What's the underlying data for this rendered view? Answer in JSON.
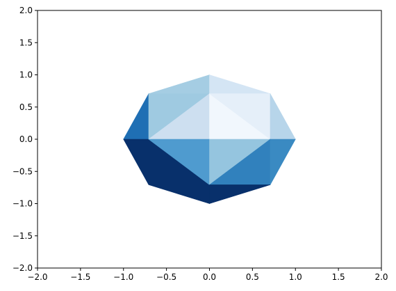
{
  "chart_data": {
    "type": "polygon-mesh",
    "title": "",
    "xlabel": "",
    "ylabel": "",
    "xlim": [
      -2.0,
      2.0
    ],
    "ylim": [
      -2.0,
      2.0
    ],
    "grid": false,
    "legend": "none",
    "xticks": [
      -2.0,
      -1.5,
      -1.0,
      -0.5,
      0.0,
      0.5,
      1.0,
      1.5,
      2.0
    ],
    "yticks": [
      -2.0,
      -1.5,
      -1.0,
      -0.5,
      0.0,
      0.5,
      1.0,
      1.5,
      2.0
    ],
    "xtick_labels": [
      "−2.0",
      "−1.5",
      "−1.0",
      "−0.5",
      "0.0",
      "0.5",
      "1.0",
      "1.5",
      "2.0"
    ],
    "ytick_labels": [
      "−2.0",
      "−1.5",
      "−1.0",
      "−0.5",
      "0.0",
      "0.5",
      "1.0",
      "1.5",
      "2.0"
    ],
    "polygons": [
      {
        "name": "top-left-upper",
        "points": [
          [
            -0.707,
            0.707
          ],
          [
            0.0,
            1.0
          ],
          [
            0.0,
            0.707
          ]
        ],
        "color": "#a5cde3"
      },
      {
        "name": "top-right-upper",
        "points": [
          [
            0.0,
            1.0
          ],
          [
            0.707,
            0.707
          ],
          [
            0.0,
            0.707
          ]
        ],
        "color": "#d4e5f4"
      },
      {
        "name": "left-upper",
        "points": [
          [
            -1.0,
            0.0
          ],
          [
            -0.707,
            0.707
          ],
          [
            -0.707,
            0.0
          ]
        ],
        "color": "#1f6fb4"
      },
      {
        "name": "upper-left-inner-a",
        "points": [
          [
            -0.707,
            0.707
          ],
          [
            0.0,
            0.707
          ],
          [
            -0.707,
            0.0
          ]
        ],
        "color": "#9fcae1"
      },
      {
        "name": "upper-left-inner-b",
        "points": [
          [
            0.0,
            0.707
          ],
          [
            0.0,
            0.0
          ],
          [
            -0.707,
            0.0
          ]
        ],
        "color": "#cddff0"
      },
      {
        "name": "upper-right-inner-a",
        "points": [
          [
            0.0,
            0.707
          ],
          [
            0.707,
            0.0
          ],
          [
            0.0,
            0.0
          ]
        ],
        "color": "#f1f7fd"
      },
      {
        "name": "upper-right-inner-b",
        "points": [
          [
            0.0,
            0.707
          ],
          [
            0.707,
            0.707
          ],
          [
            0.707,
            0.0
          ]
        ],
        "color": "#e5eff9"
      },
      {
        "name": "right-upper",
        "points": [
          [
            0.707,
            0.707
          ],
          [
            1.0,
            0.0
          ],
          [
            0.707,
            0.0
          ]
        ],
        "color": "#b7d5ea"
      },
      {
        "name": "lower-left-outer",
        "points": [
          [
            -1.0,
            0.0
          ],
          [
            -0.707,
            -0.707
          ],
          [
            0.0,
            -1.0
          ],
          [
            0.0,
            -0.707
          ],
          [
            -0.707,
            0.0
          ]
        ],
        "color": "#08306b"
      },
      {
        "name": "lower-left-inner",
        "points": [
          [
            -0.707,
            0.0
          ],
          [
            0.0,
            0.0
          ],
          [
            0.0,
            -0.707
          ]
        ],
        "color": "#4f9bcf"
      },
      {
        "name": "lower-right-inner",
        "points": [
          [
            0.0,
            0.0
          ],
          [
            0.707,
            0.0
          ],
          [
            0.0,
            -0.707
          ]
        ],
        "color": "#95c5df"
      },
      {
        "name": "lower-right-mid",
        "points": [
          [
            0.707,
            0.0
          ],
          [
            0.707,
            -0.707
          ],
          [
            0.0,
            -0.707
          ]
        ],
        "color": "#3181bd"
      },
      {
        "name": "right-lower",
        "points": [
          [
            0.707,
            0.0
          ],
          [
            1.0,
            0.0
          ],
          [
            0.707,
            -0.707
          ]
        ],
        "color": "#3a8ac2"
      },
      {
        "name": "bottom-right",
        "points": [
          [
            0.0,
            -0.707
          ],
          [
            0.707,
            -0.707
          ],
          [
            0.0,
            -1.0
          ]
        ],
        "color": "#08306b"
      }
    ]
  }
}
